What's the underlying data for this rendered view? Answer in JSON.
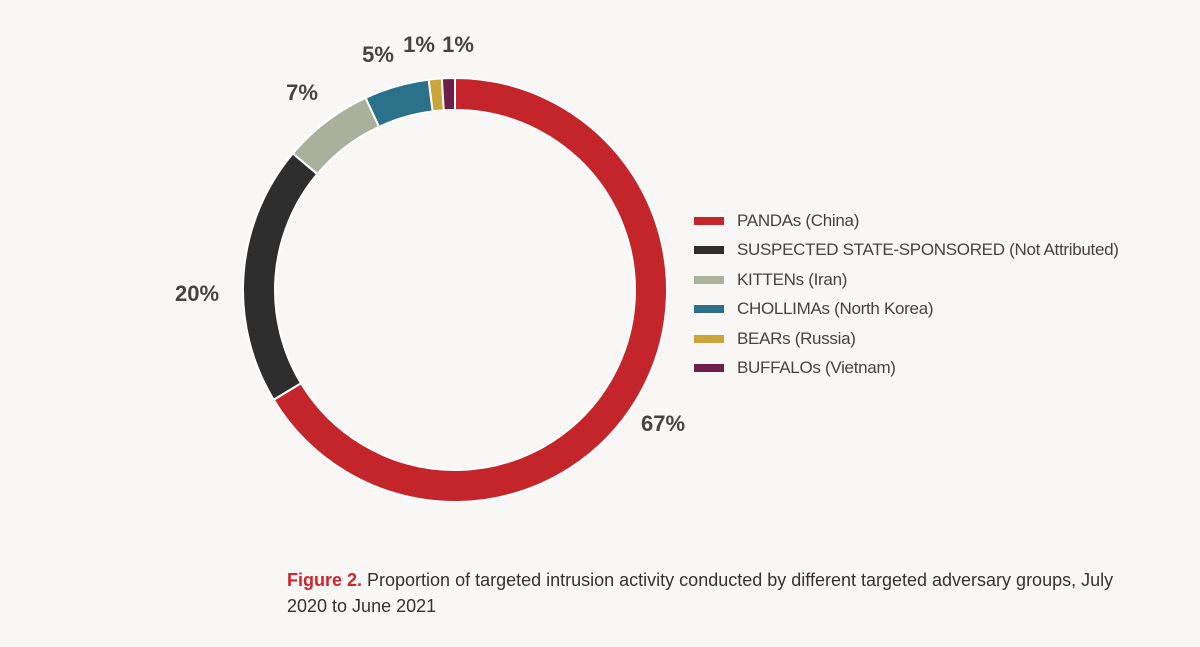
{
  "chart_data": {
    "type": "pie",
    "variant": "donut",
    "categories": [
      "PANDAs (China)",
      "SUSPECTED STATE-SPONSORED (Not Attributed)",
      "KITTENs (Iran)",
      "CHOLLIMAs (North Korea)",
      "BEARs (Russia)",
      "BUFFALOs (Vietnam)"
    ],
    "values": [
      67,
      20,
      7,
      5,
      1,
      1
    ],
    "data_labels": [
      "67%",
      "20%",
      "7%",
      "5%",
      "1%",
      "1%"
    ],
    "colors": [
      "#c4252a",
      "#2e2e2e",
      "#a9b09b",
      "#2a7189",
      "#c9a53a",
      "#6e1f45"
    ],
    "legend_position": "right",
    "title": ""
  },
  "caption": {
    "label": "Figure 2.",
    "text": " Proportion of targeted intrusion activity conducted by different targeted adversary groups, July 2020 to June 2021"
  }
}
